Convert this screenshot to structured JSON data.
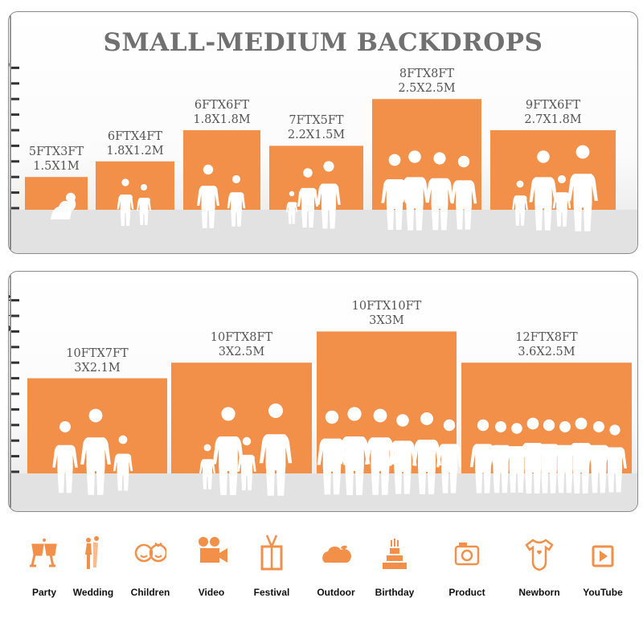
{
  "title": "SMALL-MEDIUM BACKDROPS",
  "colors": {
    "accent": "#F2904A",
    "title": "#707070",
    "figure": "#FFFFFF"
  },
  "panels": [
    {
      "axis_ticks": [
        "1",
        "2",
        "3",
        "4",
        "5",
        "6",
        "7",
        "8",
        "9",
        "10"
      ],
      "backdrops": [
        {
          "label_ft": "5FTX3FT",
          "label_m": "1.5X1M",
          "width_ft": 5,
          "height_ft": 3
        },
        {
          "label_ft": "6FTX4FT",
          "label_m": "1.8X1.2M",
          "width_ft": 6,
          "height_ft": 4
        },
        {
          "label_ft": "6FTX6FT",
          "label_m": "1.8X1.8M",
          "width_ft": 6,
          "height_ft": 6
        },
        {
          "label_ft": "7FTX5FT",
          "label_m": "2.2X1.5M",
          "width_ft": 7,
          "height_ft": 5
        },
        {
          "label_ft": "8FTX8FT",
          "label_m": "2.5X2.5M",
          "width_ft": 8,
          "height_ft": 8
        },
        {
          "label_ft": "9FTX6FT",
          "label_m": "2.7X1.8M",
          "width_ft": 9,
          "height_ft": 6
        }
      ]
    },
    {
      "axis_ticks": [
        "1",
        "2",
        "3",
        "4",
        "5",
        "6",
        "7",
        "8",
        "9",
        "10",
        "11",
        "12"
      ],
      "backdrops": [
        {
          "label_ft": "10FTX7FT",
          "label_m": "3X2.1M",
          "width_ft": 10,
          "height_ft": 7
        },
        {
          "label_ft": "10FTX8FT",
          "label_m": "3X2.5M",
          "width_ft": 10,
          "height_ft": 8
        },
        {
          "label_ft": "10FTX10FT",
          "label_m": "3X3M",
          "width_ft": 10,
          "height_ft": 10
        },
        {
          "label_ft": "12FTX8FT",
          "label_m": "3.6X2.5M",
          "width_ft": 12,
          "height_ft": 8
        }
      ]
    }
  ],
  "categories": [
    {
      "label": "Party",
      "icon": "champagne-glasses-icon"
    },
    {
      "label": "Wedding",
      "icon": "wedding-couple-icon"
    },
    {
      "label": "Children",
      "icon": "children-faces-icon"
    },
    {
      "label": "Video",
      "icon": "video-camera-icon"
    },
    {
      "label": "Festival",
      "icon": "gift-box-icon"
    },
    {
      "label": "Outdoor",
      "icon": "cloud-icon"
    },
    {
      "label": "Birthday",
      "icon": "birthday-cake-icon"
    },
    {
      "label": "Product",
      "icon": "camera-icon"
    },
    {
      "label": "Newborn",
      "icon": "baby-onesie-icon"
    },
    {
      "label": "YouTube",
      "icon": "play-button-icon"
    }
  ]
}
